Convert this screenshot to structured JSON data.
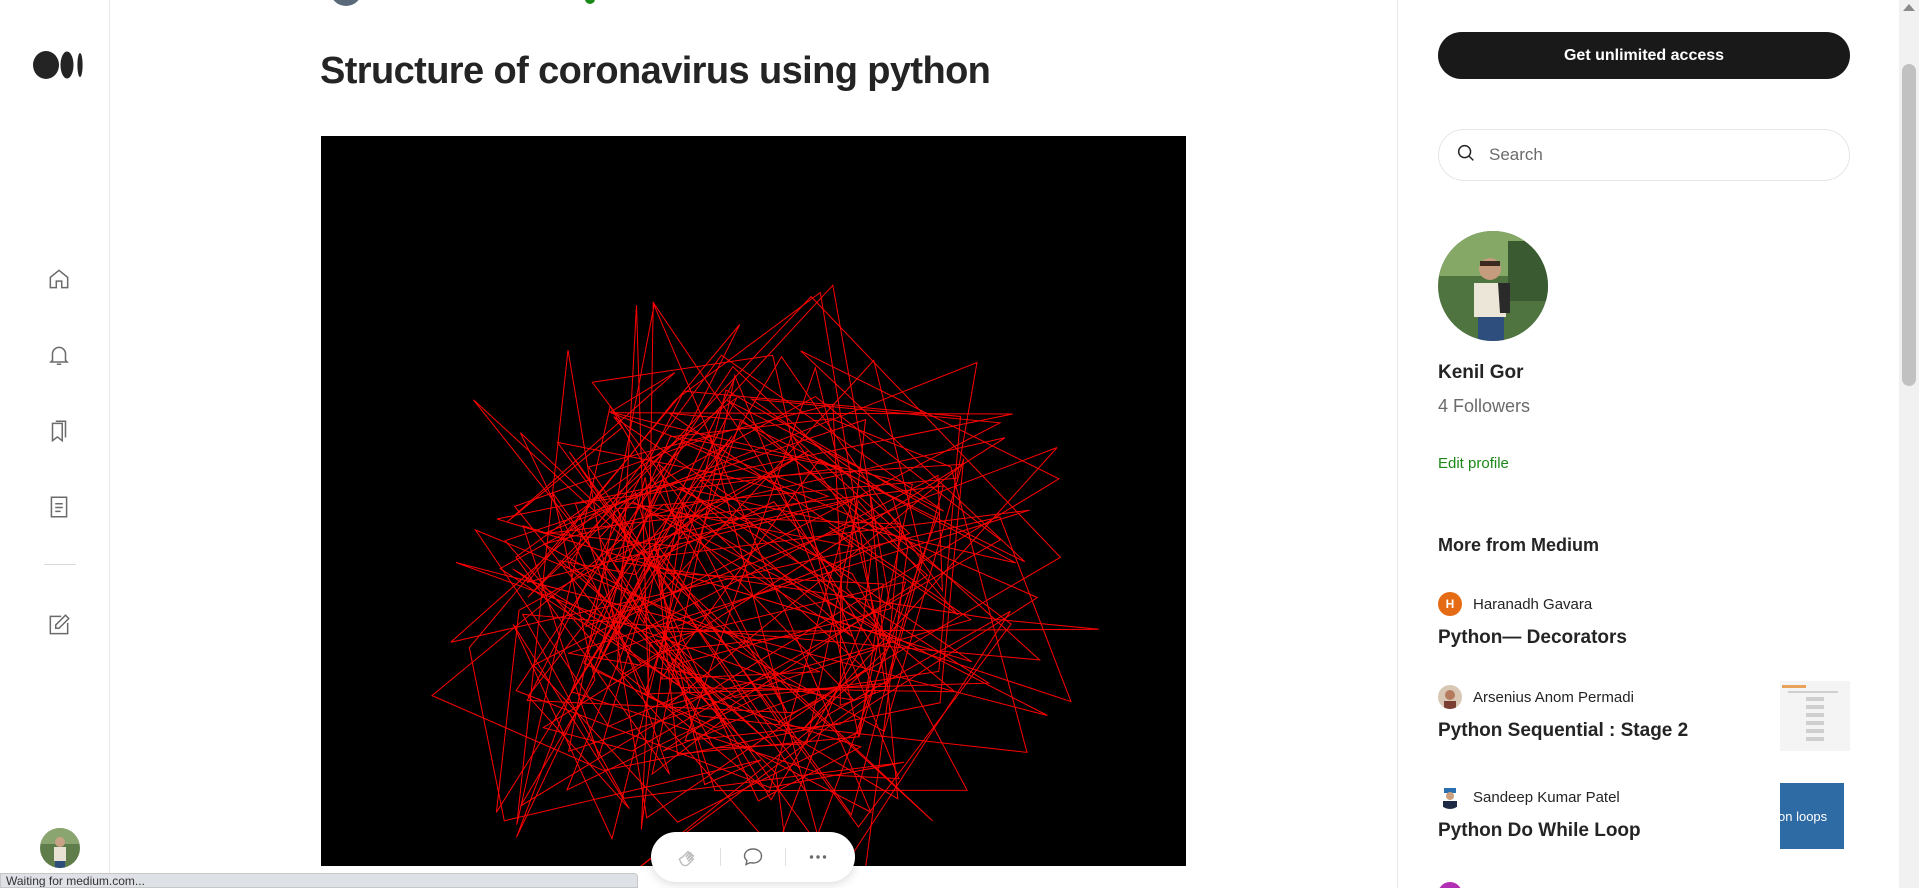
{
  "article": {
    "title": "Structure of coronavirus using python"
  },
  "rail": {
    "items": [
      "home",
      "notifications",
      "lists",
      "stories",
      "write"
    ]
  },
  "sidebar": {
    "cta_label": "Get unlimited access",
    "search_placeholder": "Search",
    "author": {
      "name": "Kenil Gor",
      "followers": "4 Followers",
      "edit_label": "Edit profile"
    },
    "more_heading": "More from Medium",
    "stories": [
      {
        "author": "Haranadh Gavara",
        "title": "Python— Decorators",
        "avatar_letter": "H",
        "avatar_color": "#e56b14"
      },
      {
        "author": "Arsenius Anom Permadi",
        "title": "Python Sequential : Stage 2",
        "avatar_color": "#b55a4a"
      },
      {
        "author": "Sandeep Kumar Patel",
        "title": "Python Do While Loop",
        "avatar_color": "#3b4a66",
        "thumb_text": "on loops"
      }
    ]
  },
  "status": {
    "text": "Waiting for medium.com..."
  },
  "colors": {
    "brand_green": "#1a8917",
    "cta_bg": "#191919",
    "virus_red": "#ff0000"
  }
}
